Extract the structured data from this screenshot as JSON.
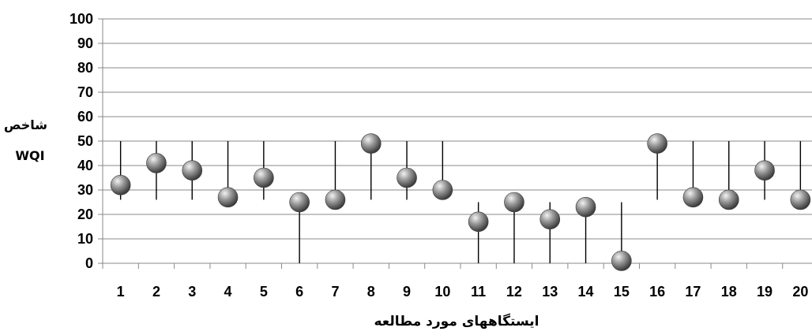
{
  "chart_data": {
    "type": "scatter",
    "ylabel_line1": "شاخص",
    "ylabel_line2": "WQI",
    "xlabel": "ایستگاههای مورد مطالعه",
    "ylim": [
      0,
      100
    ],
    "yticks": [
      "0",
      "10",
      "20",
      "30",
      "40",
      "50",
      "60",
      "70",
      "80",
      "90",
      "100"
    ],
    "categories": [
      "1",
      "2",
      "3",
      "4",
      "5",
      "6",
      "7",
      "8",
      "9",
      "10",
      "11",
      "12",
      "13",
      "14",
      "15",
      "16",
      "17",
      "18",
      "19",
      "20"
    ],
    "values": [
      32,
      41,
      38,
      27,
      35,
      25,
      26,
      49,
      35,
      30,
      17,
      25,
      18,
      23,
      1,
      49,
      27,
      26,
      38,
      26
    ],
    "ranges": [
      [
        26,
        50
      ],
      [
        26,
        50
      ],
      [
        26,
        50
      ],
      [
        26,
        50
      ],
      [
        26,
        50
      ],
      [
        0,
        25
      ],
      [
        26,
        50
      ],
      [
        26,
        50
      ],
      [
        26,
        50
      ],
      [
        26,
        50
      ],
      [
        0,
        25
      ],
      [
        0,
        25
      ],
      [
        0,
        25
      ],
      [
        0,
        25
      ],
      [
        0,
        25
      ],
      [
        26,
        50
      ],
      [
        26,
        50
      ],
      [
        26,
        50
      ],
      [
        26,
        50
      ],
      [
        26,
        50
      ]
    ],
    "grid": true,
    "marker_color": "#8c8c8c"
  }
}
